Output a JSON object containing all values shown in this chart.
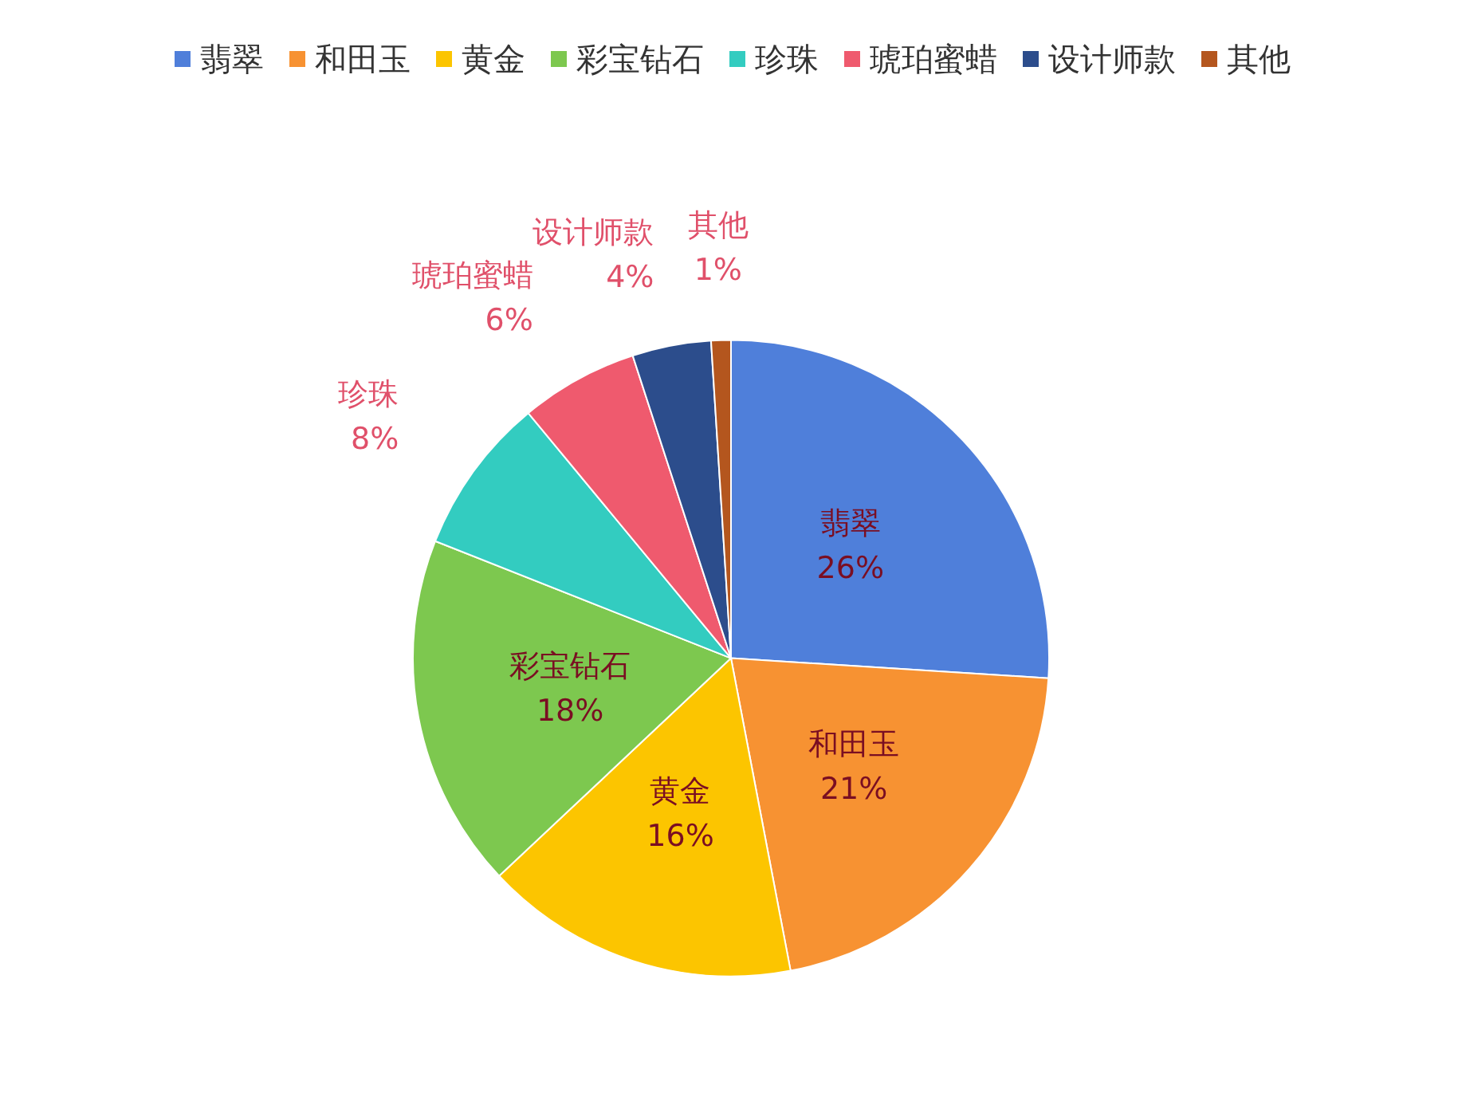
{
  "chart_data": {
    "type": "pie",
    "categories": [
      "翡翠",
      "和田玉",
      "黄金",
      "彩宝钻石",
      "珍珠",
      "琥珀蜜蜡",
      "设计师款",
      "其他"
    ],
    "values": [
      26,
      21,
      16,
      18,
      8,
      6,
      4,
      1
    ],
    "value_labels": [
      "26%",
      "21%",
      "16%",
      "18%",
      "8%",
      "6%",
      "4%",
      "1%"
    ],
    "colors": [
      "#4f7fda",
      "#f79232",
      "#fcc500",
      "#7dc84f",
      "#33ccc0",
      "#ef5a6e",
      "#2c4d8c",
      "#b4561e"
    ],
    "legend": "top"
  }
}
